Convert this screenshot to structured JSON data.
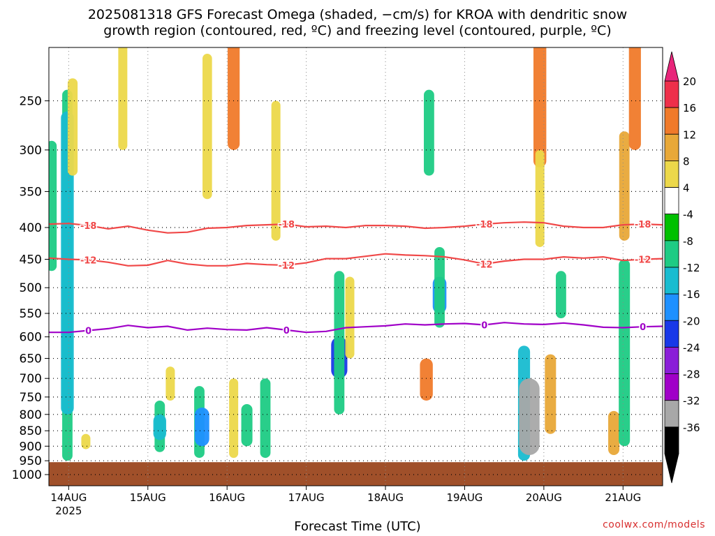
{
  "title_line1": "2025081318 GFS Forecast Omega (shaded, −cm/s) for KROA with dendritic snow",
  "title_line2": "growth region (contoured, red, ºC) and freezing level (contoured, purple, ºC)",
  "credit": "coolwx.com/models",
  "chart_data": {
    "type": "heatmap",
    "title": "2025081318 GFS Forecast Omega (shaded, −cm/s) for KROA with dendritic snow growth region (contoured, red, ºC) and freezing level (contoured, purple, ºC)",
    "xlabel": "Forecast Time (UTC)",
    "ylabel": "",
    "x_ticks": [
      "14AUG",
      "15AUG",
      "16AUG",
      "17AUG",
      "18AUG",
      "19AUG",
      "20AUG",
      "21AUG"
    ],
    "x_tick_year": "2025",
    "y_ticks": [
      250,
      300,
      350,
      400,
      450,
      500,
      550,
      600,
      650,
      700,
      750,
      800,
      850,
      900,
      950,
      1000
    ],
    "y_range": [
      200,
      1000
    ],
    "y_scale": "log-pressure (inverted)",
    "grid": true,
    "colorbar": {
      "labels": [
        20,
        16,
        12,
        8,
        4,
        -4,
        -8,
        -12,
        -16,
        -20,
        -24,
        -28,
        -32,
        -36
      ],
      "colors": [
        "#ee2f4a",
        "#f07a2a",
        "#e8a838",
        "#ecd84a",
        "#ffffff",
        "#00c000",
        "#1ecb84",
        "#18bcd0",
        "#1e90ff",
        "#1838e8",
        "#8a1ed8",
        "#a000c8",
        "#a8a8a8",
        "#000000"
      ]
    },
    "contours": [
      {
        "value": -18,
        "color": "#f04848",
        "label": "-18",
        "points": [
          [
            0,
            395
          ],
          [
            6,
            394
          ],
          [
            12,
            397
          ],
          [
            18,
            402
          ],
          [
            24,
            398
          ],
          [
            30,
            404
          ],
          [
            36,
            408
          ],
          [
            42,
            407
          ],
          [
            48,
            401
          ],
          [
            54,
            400
          ],
          [
            60,
            397
          ],
          [
            66,
            396
          ],
          [
            72,
            395
          ],
          [
            78,
            399
          ],
          [
            84,
            398
          ],
          [
            90,
            400
          ],
          [
            96,
            397
          ],
          [
            102,
            397
          ],
          [
            108,
            398
          ],
          [
            114,
            401
          ],
          [
            120,
            400
          ],
          [
            126,
            398
          ],
          [
            132,
            395
          ],
          [
            138,
            393
          ],
          [
            144,
            392
          ],
          [
            150,
            393
          ],
          [
            156,
            398
          ],
          [
            162,
            400
          ],
          [
            168,
            400
          ],
          [
            174,
            396
          ],
          [
            180,
            395
          ],
          [
            186,
            396
          ]
        ]
      },
      {
        "value": -12,
        "color": "#f04848",
        "label": "-12",
        "points": [
          [
            0,
            448
          ],
          [
            6,
            450
          ],
          [
            12,
            451
          ],
          [
            18,
            455
          ],
          [
            24,
            461
          ],
          [
            30,
            460
          ],
          [
            36,
            452
          ],
          [
            42,
            458
          ],
          [
            48,
            461
          ],
          [
            54,
            461
          ],
          [
            60,
            457
          ],
          [
            66,
            459
          ],
          [
            72,
            460
          ],
          [
            78,
            456
          ],
          [
            84,
            449
          ],
          [
            90,
            449
          ],
          [
            96,
            445
          ],
          [
            102,
            441
          ],
          [
            108,
            443
          ],
          [
            114,
            444
          ],
          [
            120,
            446
          ],
          [
            126,
            451
          ],
          [
            132,
            458
          ],
          [
            138,
            453
          ],
          [
            144,
            450
          ],
          [
            150,
            450
          ],
          [
            156,
            446
          ],
          [
            162,
            448
          ],
          [
            168,
            446
          ],
          [
            174,
            452
          ],
          [
            180,
            450
          ],
          [
            186,
            449
          ]
        ]
      },
      {
        "value": 0,
        "color": "#a000c8",
        "label": "0",
        "points": [
          [
            0,
            590
          ],
          [
            6,
            590
          ],
          [
            12,
            586
          ],
          [
            18,
            582
          ],
          [
            24,
            575
          ],
          [
            30,
            580
          ],
          [
            36,
            577
          ],
          [
            42,
            585
          ],
          [
            48,
            581
          ],
          [
            54,
            584
          ],
          [
            60,
            585
          ],
          [
            66,
            580
          ],
          [
            72,
            585
          ],
          [
            78,
            590
          ],
          [
            84,
            588
          ],
          [
            90,
            580
          ],
          [
            96,
            578
          ],
          [
            102,
            576
          ],
          [
            108,
            572
          ],
          [
            114,
            574
          ],
          [
            120,
            572
          ],
          [
            126,
            571
          ],
          [
            132,
            574
          ],
          [
            138,
            569
          ],
          [
            144,
            572
          ],
          [
            150,
            573
          ],
          [
            156,
            570
          ],
          [
            162,
            574
          ],
          [
            168,
            579
          ],
          [
            174,
            580
          ],
          [
            180,
            578
          ],
          [
            186,
            577
          ]
        ]
      }
    ],
    "ground_pressure": 955,
    "blobs": [
      {
        "x": 0.5,
        "p0": 290,
        "p1": 470,
        "v": -8
      },
      {
        "x": 3.5,
        "p0": 240,
        "p1": 950,
        "v": -8
      },
      {
        "x": 3.5,
        "p0": 260,
        "p1": 800,
        "v": -14
      },
      {
        "x": 4.5,
        "p0": 230,
        "p1": 330,
        "v": 7
      },
      {
        "x": 7,
        "p0": 860,
        "p1": 910,
        "v": 5
      },
      {
        "x": 14,
        "p0": 200,
        "p1": 300,
        "v": 5
      },
      {
        "x": 21,
        "p0": 760,
        "p1": 920,
        "v": -8
      },
      {
        "x": 21,
        "p0": 800,
        "p1": 880,
        "v": -14
      },
      {
        "x": 23,
        "p0": 670,
        "p1": 760,
        "v": 5
      },
      {
        "x": 28.5,
        "p0": 720,
        "p1": 940,
        "v": -8
      },
      {
        "x": 29,
        "p0": 780,
        "p1": 900,
        "v": -18
      },
      {
        "x": 30,
        "p0": 210,
        "p1": 360,
        "v": 6
      },
      {
        "x": 35,
        "p0": 200,
        "p1": 300,
        "v": 12
      },
      {
        "x": 35,
        "p0": 700,
        "p1": 940,
        "v": 5
      },
      {
        "x": 37.5,
        "p0": 770,
        "p1": 900,
        "v": -10
      },
      {
        "x": 41,
        "p0": 700,
        "p1": 940,
        "v": -8
      },
      {
        "x": 43,
        "p0": 250,
        "p1": 420,
        "v": 5
      },
      {
        "x": 55,
        "p0": 600,
        "p1": 700,
        "v": -22
      },
      {
        "x": 55,
        "p0": 470,
        "p1": 800,
        "v": -8
      },
      {
        "x": 57,
        "p0": 480,
        "p1": 650,
        "v": 5
      },
      {
        "x": 72,
        "p0": 240,
        "p1": 330,
        "v": -8
      },
      {
        "x": 74,
        "p0": 480,
        "p1": 550,
        "v": -16
      },
      {
        "x": 74,
        "p0": 430,
        "p1": 580,
        "v": -8
      },
      {
        "x": 71.5,
        "p0": 650,
        "p1": 760,
        "v": 14
      },
      {
        "x": 90,
        "p0": 620,
        "p1": 950,
        "v": -12
      },
      {
        "x": 91,
        "p0": 700,
        "p1": 930,
        "v": -32
      },
      {
        "x": 93,
        "p0": 200,
        "p1": 320,
        "v": 14
      },
      {
        "x": 93,
        "p0": 300,
        "p1": 430,
        "v": 5
      },
      {
        "x": 95,
        "p0": 640,
        "p1": 860,
        "v": 10
      },
      {
        "x": 97,
        "p0": 470,
        "p1": 560,
        "v": -8
      },
      {
        "x": 107,
        "p0": 790,
        "p1": 930,
        "v": 10
      },
      {
        "x": 109,
        "p0": 280,
        "p1": 420,
        "v": 8
      },
      {
        "x": 109,
        "p0": 450,
        "p1": 900,
        "v": -10
      },
      {
        "x": 111,
        "p0": 200,
        "p1": 300,
        "v": 12
      }
    ]
  }
}
